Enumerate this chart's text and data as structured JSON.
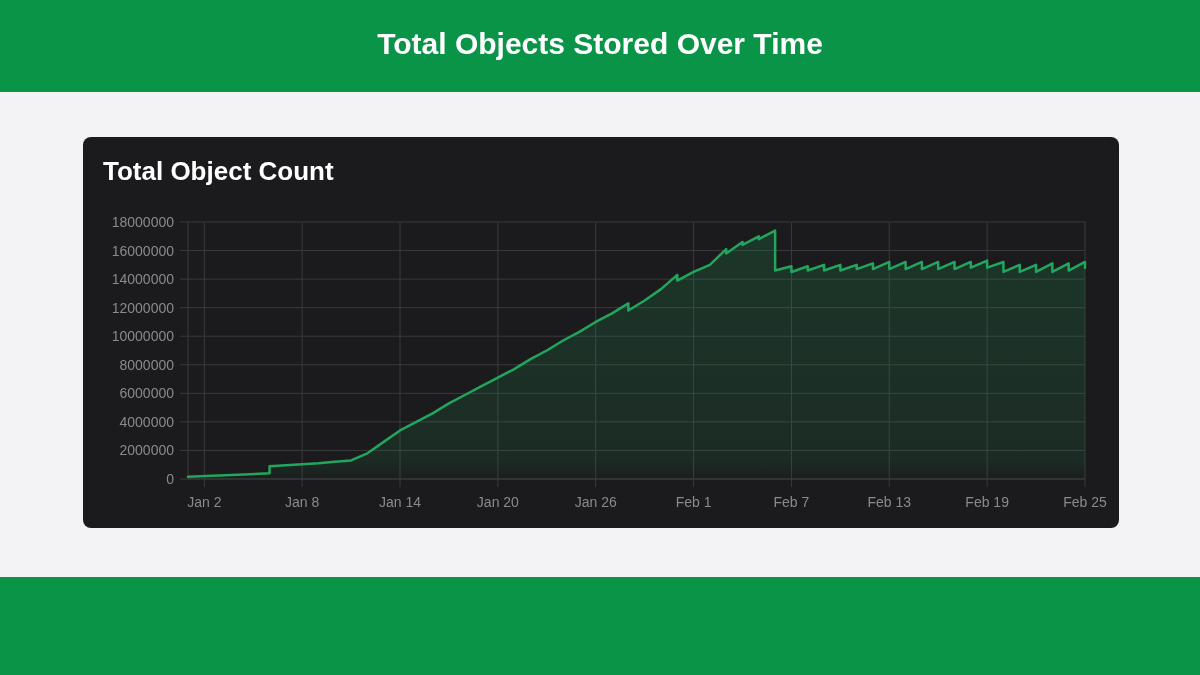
{
  "chart_data": {
    "type": "area",
    "title": "Total Objects Stored Over Time",
    "subtitle": "Total Object Count",
    "x": [
      "--01-01",
      "--01-06",
      "--01-06",
      "--01-09",
      "--01-10",
      "--01-11",
      "--01-12",
      "--01-13",
      "--01-14",
      "--01-15",
      "--01-16",
      "--01-17",
      "--01-18",
      "--01-19",
      "--01-20",
      "--01-21",
      "--01-22",
      "--01-23",
      "--01-24",
      "--01-25",
      "--01-26",
      "--01-27",
      "--01-28",
      "--01-28",
      "--01-29",
      "--01-30",
      "--01-31",
      "--01-31",
      "--02-01",
      "--02-02",
      "--02-03",
      "--02-03",
      "--02-04",
      "--02-04",
      "--02-05",
      "--02-05",
      "--02-06",
      "--02-06",
      "--02-07",
      "--02-07",
      "--02-08",
      "--02-08",
      "--02-09",
      "--02-09",
      "--02-10",
      "--02-10",
      "--02-11",
      "--02-11",
      "--02-12",
      "--02-12",
      "--02-13",
      "--02-13",
      "--02-14",
      "--02-14",
      "--02-15",
      "--02-15",
      "--02-16",
      "--02-16",
      "--02-17",
      "--02-17",
      "--02-18",
      "--02-18",
      "--02-19",
      "--02-19",
      "--02-20",
      "--02-20",
      "--02-21",
      "--02-21",
      "--02-22",
      "--02-22",
      "--02-23",
      "--02-23",
      "--02-24",
      "--02-24",
      "--02-25",
      "--02-25"
    ],
    "series": [
      {
        "color": "#22a55c",
        "values": [
          150000,
          400000,
          900000,
          1100000,
          1200000,
          1300000,
          1800000,
          2600000,
          3400000,
          4000000,
          4600000,
          5300000,
          5900000,
          6500000,
          7100000,
          7700000,
          8400000,
          9000000,
          9700000,
          10300000,
          11000000,
          11600000,
          12300000,
          11800000,
          12500000,
          13300000,
          14300000,
          13900000,
          14500000,
          15000000,
          16100000,
          15800000,
          16600000,
          16400000,
          17000000,
          16800000,
          17400000,
          14600000,
          14900000,
          14500000,
          14900000,
          14600000,
          15000000,
          14600000,
          15000000,
          14600000,
          15000000,
          14700000,
          15100000,
          14700000,
          15200000,
          14700000,
          15200000,
          14700000,
          15200000,
          14700000,
          15200000,
          14700000,
          15200000,
          14700000,
          15200000,
          14800000,
          15300000,
          14800000,
          15200000,
          14500000,
          15000000,
          14500000,
          15000000,
          14500000,
          15100000,
          14500000,
          15100000,
          14600000,
          15200000,
          14800000
        ]
      }
    ],
    "xlim": [
      "--01-01",
      "--02-25"
    ],
    "xticks": [
      {
        "value": "--01-02",
        "label": "Jan 2"
      },
      {
        "value": "--01-08",
        "label": "Jan 8"
      },
      {
        "value": "--01-14",
        "label": "Jan 14"
      },
      {
        "value": "--01-20",
        "label": "Jan 20"
      },
      {
        "value": "--01-26",
        "label": "Jan 26"
      },
      {
        "value": "--02-01",
        "label": "Feb 1"
      },
      {
        "value": "--02-07",
        "label": "Feb 7"
      },
      {
        "value": "--02-13",
        "label": "Feb 13"
      },
      {
        "value": "--02-19",
        "label": "Feb 19"
      },
      {
        "value": "--02-25",
        "label": "Feb 25"
      }
    ],
    "ylim": [
      0,
      18000000
    ],
    "yticks": [
      0,
      2000000,
      4000000,
      6000000,
      8000000,
      10000000,
      12000000,
      14000000,
      16000000,
      18000000
    ],
    "grid": true
  }
}
